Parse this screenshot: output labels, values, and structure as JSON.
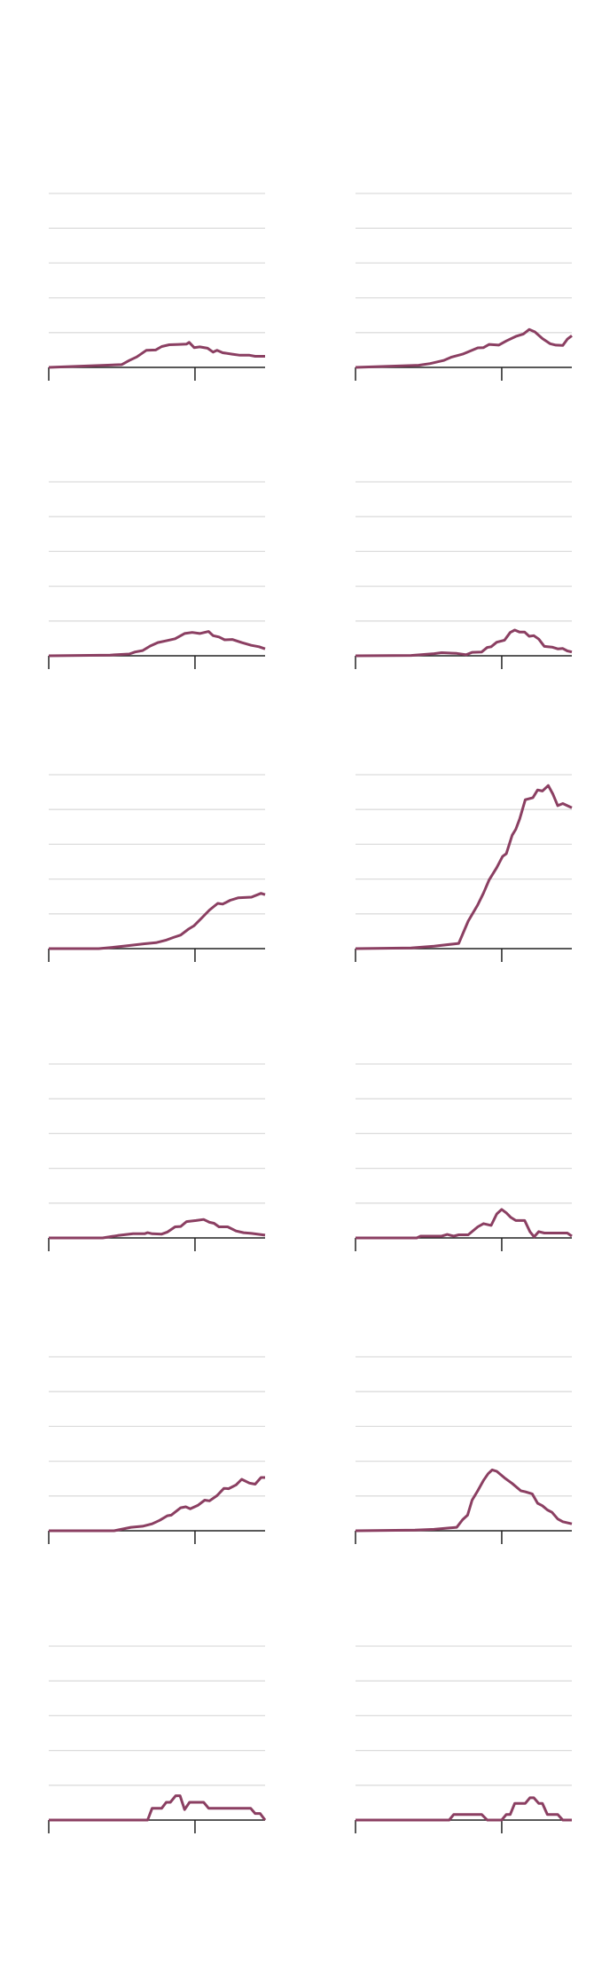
{
  "chart_data": [
    {
      "type": "line",
      "xlim": [
        0,
        100
      ],
      "ylim": [
        0,
        5
      ],
      "grid": true,
      "x_ticks": [
        0,
        67.6
      ],
      "x": [
        0,
        33.7,
        37.2,
        40.7,
        45.1,
        49.4,
        52.2,
        55.7,
        60.1,
        63.7,
        64.9,
        67.2,
        69.8,
        73.4,
        76,
        77.8,
        80.4,
        84.8,
        88.4,
        92.8,
        95.4,
        100
      ],
      "y": [
        0,
        0.08,
        0.2,
        0.3,
        0.49,
        0.5,
        0.6,
        0.65,
        0.66,
        0.67,
        0.72,
        0.57,
        0.59,
        0.55,
        0.44,
        0.49,
        0.42,
        0.38,
        0.35,
        0.35,
        0.32,
        0.32
      ]
    },
    {
      "type": "line",
      "xlim": [
        0,
        100
      ],
      "ylim": [
        0,
        5
      ],
      "grid": true,
      "x_ticks": [
        0,
        67.6
      ],
      "x": [
        0,
        29.2,
        34.5,
        40.7,
        44.2,
        49.5,
        56.5,
        59.2,
        61.8,
        66.2,
        69.7,
        74.1,
        77.6,
        80.3,
        82.9,
        86.4,
        89.9,
        92.6,
        95.8,
        97.9,
        100
      ],
      "y": [
        0,
        0.06,
        0.11,
        0.2,
        0.29,
        0.38,
        0.56,
        0.57,
        0.66,
        0.64,
        0.76,
        0.89,
        0.96,
        1.09,
        1.02,
        0.83,
        0.68,
        0.64,
        0.63,
        0.81,
        0.91
      ]
    },
    {
      "type": "line",
      "xlim": [
        0,
        100
      ],
      "ylim": [
        0,
        5
      ],
      "grid": true,
      "x_ticks": [
        0,
        67.6
      ],
      "x": [
        0,
        28.4,
        37.2,
        39.9,
        43.4,
        46.9,
        50.4,
        54.8,
        58.4,
        62.8,
        66.3,
        69.8,
        73.9,
        76,
        78.7,
        81.3,
        84.8,
        89.2,
        93.6,
        97.2,
        100
      ],
      "y": [
        0,
        0.02,
        0.05,
        0.11,
        0.15,
        0.28,
        0.38,
        0.44,
        0.49,
        0.64,
        0.67,
        0.64,
        0.7,
        0.58,
        0.54,
        0.46,
        0.47,
        0.38,
        0.3,
        0.26,
        0.2
      ]
    },
    {
      "type": "line",
      "xlim": [
        0,
        100
      ],
      "ylim": [
        0,
        5
      ],
      "grid": true,
      "x_ticks": [
        0,
        67.6
      ],
      "x": [
        0,
        25.7,
        36.3,
        39.8,
        46.8,
        51.2,
        53.9,
        58.3,
        60.9,
        62.7,
        65.3,
        68.9,
        71.5,
        73.6,
        75.9,
        78.2,
        80.3,
        82.4,
        84.7,
        87.3,
        90.8,
        93.5,
        95.8,
        97.9,
        100
      ],
      "y": [
        0,
        0.01,
        0.06,
        0.09,
        0.07,
        0.03,
        0.1,
        0.11,
        0.24,
        0.26,
        0.39,
        0.45,
        0.67,
        0.74,
        0.68,
        0.68,
        0.56,
        0.58,
        0.48,
        0.27,
        0.25,
        0.2,
        0.21,
        0.14,
        0.11
      ]
    },
    {
      "type": "line",
      "xlim": [
        0,
        100
      ],
      "ylim": [
        0,
        5
      ],
      "grid": true,
      "x_ticks": [
        0,
        67.6
      ],
      "x": [
        0,
        23.1,
        30.2,
        37.2,
        44.3,
        49.6,
        54,
        57.5,
        61,
        64.6,
        67.2,
        70.7,
        74.3,
        78.1,
        80.4,
        83.9,
        87.5,
        93.7,
        98.1,
        100
      ],
      "y": [
        0,
        0,
        0.04,
        0.09,
        0.14,
        0.17,
        0.24,
        0.32,
        0.39,
        0.56,
        0.66,
        0.88,
        1.11,
        1.3,
        1.28,
        1.39,
        1.46,
        1.48,
        1.59,
        1.55
      ]
    },
    {
      "type": "line",
      "xlim": [
        0,
        100
      ],
      "ylim": [
        0,
        5
      ],
      "grid": true,
      "x_ticks": [
        0,
        67.6
      ],
      "x": [
        0,
        25.7,
        36.3,
        47.7,
        52.1,
        56.5,
        59.2,
        61.8,
        65.3,
        68,
        69.7,
        72.4,
        74.1,
        75.9,
        78.5,
        82,
        84.2,
        86.4,
        89.1,
        91.2,
        93.5,
        95.8,
        97.9,
        100
      ],
      "y": [
        0,
        0.02,
        0.07,
        0.15,
        0.79,
        1.26,
        1.6,
        1.98,
        2.33,
        2.65,
        2.73,
        3.26,
        3.43,
        3.73,
        4.28,
        4.34,
        4.56,
        4.53,
        4.69,
        4.45,
        4.11,
        4.17,
        4.11,
        4.05
      ]
    },
    {
      "type": "line",
      "xlim": [
        0,
        100
      ],
      "ylim": [
        0,
        5
      ],
      "grid": true,
      "x_ticks": [
        0,
        67.6
      ],
      "x": [
        0,
        24.9,
        31.9,
        38.98,
        44.3,
        45.7,
        47.8,
        52.2,
        54.9,
        58.4,
        61,
        63.7,
        68.1,
        71.6,
        74.3,
        76.4,
        78.7,
        82.7,
        86.6,
        90.1,
        93.7,
        100
      ],
      "y": [
        0,
        0,
        0.07,
        0.12,
        0.12,
        0.15,
        0.12,
        0.11,
        0.17,
        0.32,
        0.33,
        0.47,
        0.5,
        0.53,
        0.45,
        0.42,
        0.32,
        0.32,
        0.2,
        0.15,
        0.13,
        0.08
      ]
    },
    {
      "type": "line",
      "xlim": [
        0,
        100
      ],
      "ylim": [
        0,
        5
      ],
      "grid": true,
      "x_ticks": [
        0,
        67.6
      ],
      "x": [
        0,
        28.3,
        30.1,
        39.8,
        42.4,
        45.4,
        47.7,
        52.1,
        56.5,
        59.2,
        62.7,
        65.3,
        67.6,
        69.7,
        71.8,
        74.1,
        78.2,
        80.6,
        82.6,
        84.7,
        87.3,
        97.9,
        100
      ],
      "y": [
        0,
        0,
        0.05,
        0.05,
        0.1,
        0.05,
        0.09,
        0.09,
        0.32,
        0.41,
        0.36,
        0.69,
        0.82,
        0.72,
        0.59,
        0.5,
        0.5,
        0.18,
        0.03,
        0.18,
        0.14,
        0.14,
        0.05
      ]
    },
    {
      "type": "line",
      "xlim": [
        0,
        100
      ],
      "ylim": [
        0,
        5
      ],
      "grid": true,
      "x_ticks": [
        0,
        67.6
      ],
      "x": [
        0,
        30.2,
        38,
        43.4,
        47.8,
        51.3,
        54.8,
        56.6,
        61,
        63.3,
        65.4,
        68.9,
        72.1,
        74.3,
        77.8,
        81,
        83.1,
        86.6,
        89.2,
        92.8,
        95.4,
        98.1,
        100
      ],
      "y": [
        0,
        0,
        0.1,
        0.13,
        0.2,
        0.3,
        0.43,
        0.45,
        0.66,
        0.69,
        0.63,
        0.73,
        0.88,
        0.86,
        1.01,
        1.22,
        1.21,
        1.32,
        1.48,
        1.37,
        1.34,
        1.53,
        1.53
      ]
    },
    {
      "type": "line",
      "xlim": [
        0,
        100
      ],
      "ylim": [
        0,
        5
      ],
      "grid": true,
      "x_ticks": [
        0,
        67.6
      ],
      "x": [
        0,
        27.5,
        36.3,
        46.8,
        49.5,
        51.8,
        53.9,
        56.5,
        59.2,
        61.3,
        63.2,
        65.3,
        68.9,
        72.4,
        76.4,
        78.5,
        81.7,
        84.2,
        86.4,
        88.7,
        90.8,
        93.5,
        95.8,
        100
      ],
      "y": [
        0,
        0.02,
        0.04,
        0.1,
        0.32,
        0.45,
        0.88,
        1.15,
        1.45,
        1.64,
        1.75,
        1.71,
        1.52,
        1.36,
        1.15,
        1.12,
        1.06,
        0.79,
        0.72,
        0.6,
        0.53,
        0.34,
        0.26,
        0.2
      ]
    },
    {
      "type": "line",
      "xlim": [
        0,
        100
      ],
      "ylim": [
        0,
        5
      ],
      "grid": true,
      "x_ticks": [
        0,
        67.6
      ],
      "x": [
        0,
        45.7,
        47.8,
        52.2,
        54.3,
        56.2,
        58.7,
        60.7,
        62.8,
        65.1,
        71.6,
        73.9,
        93.3,
        95.4,
        97.7,
        100
      ],
      "y": [
        0,
        0,
        0.34,
        0.34,
        0.51,
        0.51,
        0.7,
        0.7,
        0.3,
        0.51,
        0.51,
        0.34,
        0.34,
        0.19,
        0.19,
        0
      ]
    },
    {
      "type": "line",
      "xlim": [
        0,
        100
      ],
      "ylim": [
        0,
        5
      ],
      "grid": true,
      "x_ticks": [
        0,
        67.6
      ],
      "x": [
        0,
        43.3,
        45.4,
        58.3,
        60.9,
        67.6,
        69.7,
        71.5,
        73.6,
        78.5,
        80.6,
        82.4,
        84.7,
        86.4,
        88.7,
        93.5,
        95.8,
        100
      ],
      "y": [
        0,
        0,
        0.16,
        0.16,
        0,
        0,
        0.16,
        0.16,
        0.48,
        0.48,
        0.64,
        0.64,
        0.48,
        0.48,
        0.16,
        0.16,
        0,
        0
      ]
    }
  ],
  "colors": {
    "line": "#8b3f62",
    "grid": "#dcdcdc",
    "axis": "#222222"
  }
}
